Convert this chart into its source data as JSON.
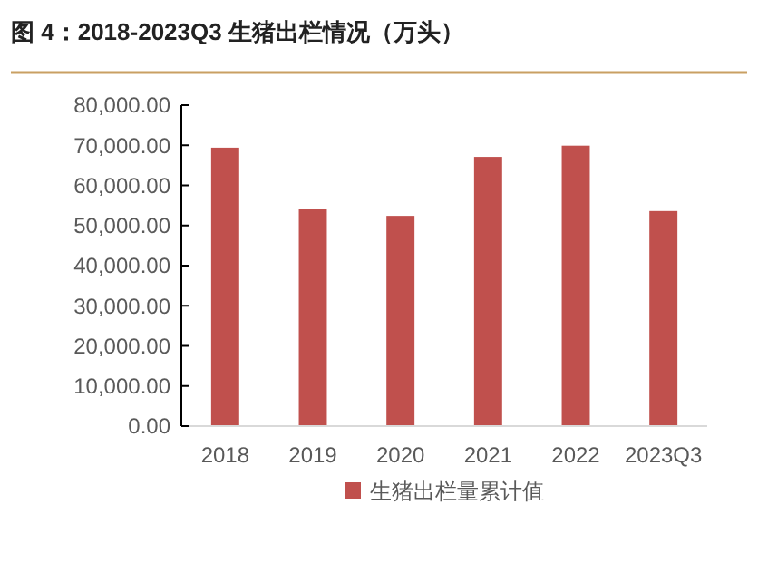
{
  "chart_data": {
    "type": "bar",
    "title": "图 4：2018-2023Q3 生猪出栏情况（万头）",
    "categories": [
      "2018",
      "2019",
      "2020",
      "2021",
      "2022",
      "2023Q3"
    ],
    "series": [
      {
        "name": "生猪出栏量累计值",
        "color": "#c0504d",
        "values": [
          69400,
          54100,
          52400,
          67100,
          69900,
          53600
        ]
      }
    ],
    "ylim": [
      0,
      80000
    ],
    "yticks": [
      {
        "value": 0,
        "label": "0.00"
      },
      {
        "value": 10000,
        "label": "10,000.00"
      },
      {
        "value": 20000,
        "label": "20,000.00"
      },
      {
        "value": 30000,
        "label": "30,000.00"
      },
      {
        "value": 40000,
        "label": "40,000.00"
      },
      {
        "value": 50000,
        "label": "50,000.00"
      },
      {
        "value": 60000,
        "label": "60,000.00"
      },
      {
        "value": 70000,
        "label": "70,000.00"
      },
      {
        "value": 80000,
        "label": "80,000.00"
      }
    ],
    "grid": false,
    "legend": "bottom"
  }
}
